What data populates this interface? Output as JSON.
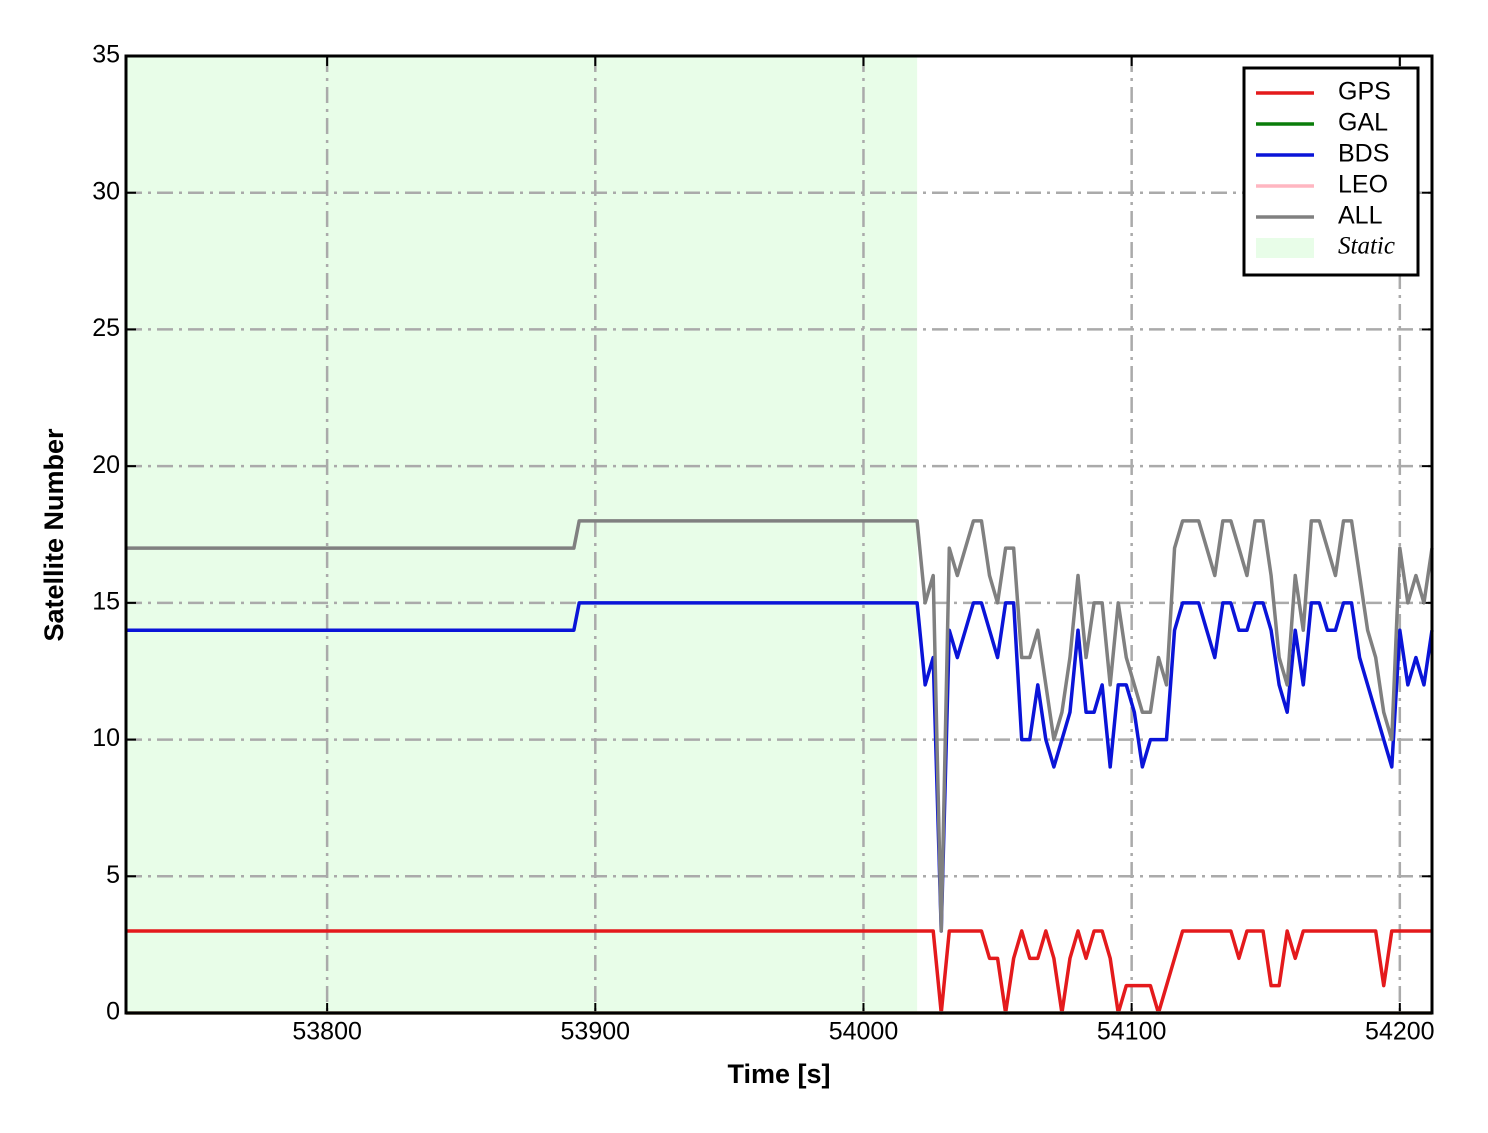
{
  "chart_data": {
    "type": "line",
    "xlabel": "Time [s]",
    "ylabel": "Satellite Number",
    "x": [
      53725,
      53892,
      53894,
      54020,
      54023,
      54026,
      54029,
      54032,
      54035,
      54038,
      54041,
      54044,
      54047,
      54050,
      54053,
      54056,
      54059,
      54062,
      54065,
      54068,
      54071,
      54074,
      54077,
      54080,
      54083,
      54086,
      54089,
      54092,
      54095,
      54098,
      54101,
      54104,
      54107,
      54110,
      54113,
      54116,
      54119,
      54122,
      54125,
      54128,
      54131,
      54134,
      54137,
      54140,
      54143,
      54146,
      54149,
      54152,
      54155,
      54158,
      54161,
      54164,
      54167,
      54170,
      54173,
      54176,
      54179,
      54182,
      54185,
      54188,
      54191,
      54194,
      54197,
      54200,
      54203,
      54206,
      54209,
      54212
    ],
    "series": [
      {
        "name": "GPS",
        "color": "#e41a1c",
        "values": [
          3,
          3,
          3,
          3,
          3,
          3,
          0,
          3,
          3,
          3,
          3,
          3,
          2,
          2,
          0,
          2,
          3,
          2,
          2,
          3,
          2,
          0,
          2,
          3,
          2,
          3,
          3,
          2,
          0,
          1,
          1,
          1,
          1,
          0,
          1,
          2,
          3,
          3,
          3,
          3,
          3,
          3,
          3,
          2,
          3,
          3,
          3,
          1,
          1,
          3,
          2,
          3,
          3,
          3,
          3,
          3,
          3,
          3,
          3,
          3,
          3,
          1,
          3,
          3,
          3,
          3,
          3,
          3
        ]
      },
      {
        "name": "GAL",
        "color": "#0a7d0a",
        "values": [
          0,
          0,
          0,
          0,
          0,
          0,
          0,
          0,
          0,
          0,
          0,
          0,
          0,
          0,
          0,
          0,
          0,
          0,
          0,
          0,
          0,
          0,
          0,
          0,
          0,
          0,
          0,
          0,
          0,
          0,
          0,
          0,
          0,
          0,
          0,
          0,
          0,
          0,
          0,
          0,
          0,
          0,
          0,
          0,
          0,
          0,
          0,
          0,
          0,
          0,
          0,
          0,
          0,
          0,
          0,
          0,
          0,
          0,
          0,
          0,
          0,
          0,
          0,
          0,
          0,
          0,
          0,
          0
        ]
      },
      {
        "name": "BDS",
        "color": "#0a14d8",
        "values": [
          14,
          14,
          15,
          15,
          12,
          13,
          3,
          14,
          13,
          14,
          15,
          15,
          14,
          13,
          15,
          15,
          10,
          10,
          12,
          10,
          9,
          10,
          11,
          14,
          11,
          11,
          12,
          9,
          12,
          12,
          11,
          9,
          10,
          10,
          10,
          14,
          15,
          15,
          15,
          14,
          13,
          15,
          15,
          14,
          14,
          15,
          15,
          14,
          12,
          11,
          14,
          12,
          15,
          15,
          14,
          14,
          15,
          15,
          13,
          12,
          11,
          10,
          9,
          14,
          12,
          13,
          12,
          14
        ]
      },
      {
        "name": "LEO",
        "color": "#ffb6c1",
        "values": [
          0,
          0,
          0,
          0,
          0,
          0,
          0,
          0,
          0,
          0,
          0,
          0,
          0,
          0,
          0,
          0,
          0,
          0,
          0,
          0,
          0,
          0,
          0,
          0,
          0,
          0,
          0,
          0,
          0,
          0,
          0,
          0,
          0,
          0,
          0,
          0,
          0,
          0,
          0,
          0,
          0,
          0,
          0,
          0,
          0,
          0,
          0,
          0,
          0,
          0,
          0,
          0,
          0,
          0,
          0,
          0,
          0,
          0,
          0,
          0,
          0,
          0,
          0,
          0,
          0,
          0,
          0,
          0
        ]
      },
      {
        "name": "ALL",
        "color": "#808080",
        "values": [
          17,
          17,
          18,
          18,
          15,
          16,
          3,
          17,
          16,
          17,
          18,
          18,
          16,
          15,
          17,
          17,
          13,
          13,
          14,
          12,
          10,
          11,
          13,
          16,
          13,
          15,
          15,
          12,
          15,
          13,
          12,
          11,
          11,
          13,
          12,
          17,
          18,
          18,
          18,
          17,
          16,
          18,
          18,
          17,
          16,
          18,
          18,
          16,
          13,
          12,
          16,
          14,
          18,
          18,
          17,
          16,
          18,
          18,
          16,
          14,
          13,
          11,
          10,
          17,
          15,
          16,
          15,
          17
        ]
      }
    ],
    "shaded": {
      "label": "Static",
      "xrange": [
        53725,
        54020
      ],
      "color": "#e8fde8"
    },
    "xlim": [
      53725,
      54212
    ],
    "xticks": [
      53800,
      53900,
      54000,
      54100,
      54200
    ],
    "ylim": [
      0,
      35
    ],
    "yticks": [
      0,
      5,
      10,
      15,
      20,
      25,
      30,
      35
    ],
    "grid": true,
    "legend": "upper right"
  }
}
